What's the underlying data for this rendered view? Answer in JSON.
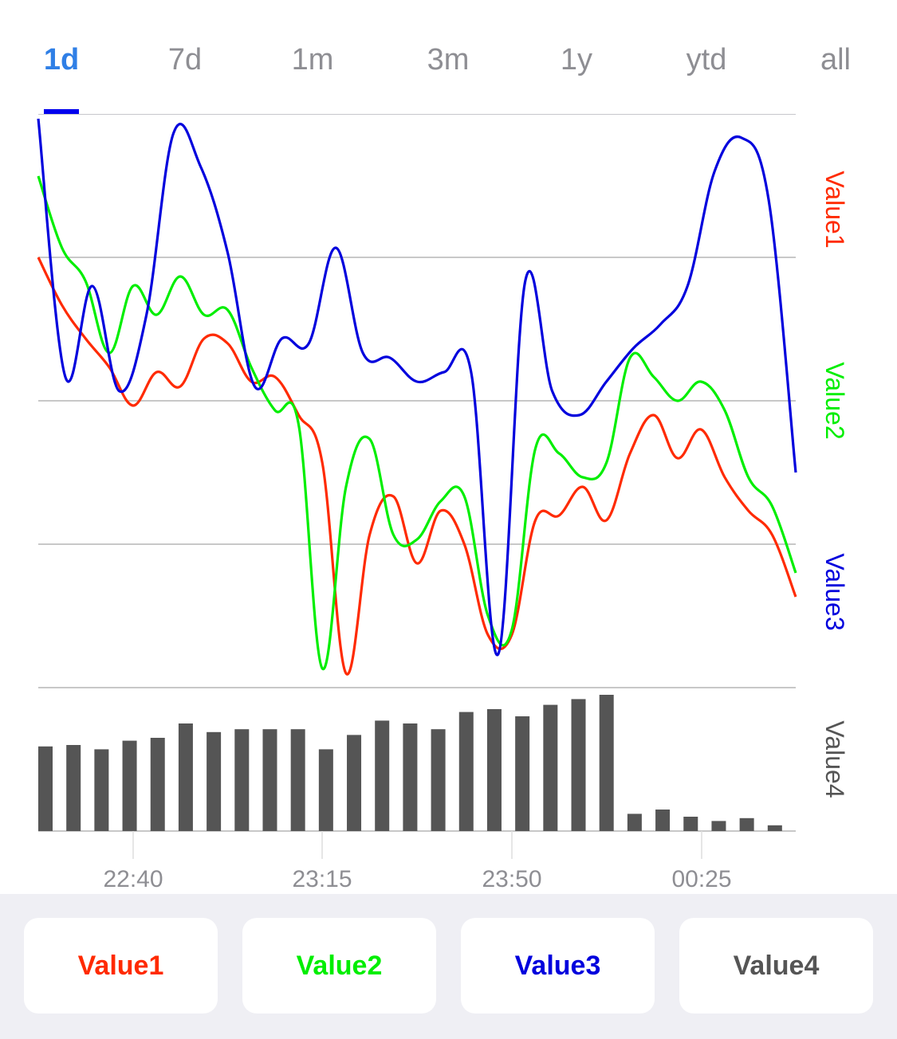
{
  "tabs": [
    {
      "label": "1d",
      "active": true
    },
    {
      "label": "7d",
      "active": false
    },
    {
      "label": "1m",
      "active": false
    },
    {
      "label": "3m",
      "active": false
    },
    {
      "label": "1y",
      "active": false
    },
    {
      "label": "ytd",
      "active": false
    },
    {
      "label": "all",
      "active": false
    }
  ],
  "colors": {
    "tab_active": "#2f7fe6",
    "tab_inactive": "#8e8e93",
    "tab_indicator": "#0000ee",
    "value1": "#ff2a00",
    "value2": "#00ee00",
    "value3": "#0000dd",
    "value4": "#555555",
    "bottom_bar": "#efeff4"
  },
  "chart_data": {
    "type": "line",
    "grid": true,
    "x_ticks": [
      "22:40",
      "23:15",
      "23:50",
      "00:25"
    ],
    "right_labels": [
      "Value1",
      "Value2",
      "Value3",
      "Value4"
    ],
    "line_series": [
      {
        "name": "Value1",
        "color": "#ff2a00",
        "values": [
          0.9,
          0.8,
          0.73,
          0.67,
          0.59,
          0.66,
          0.63,
          0.73,
          0.72,
          0.64,
          0.65,
          0.57,
          0.47,
          0.03,
          0.32,
          0.4,
          0.26,
          0.37,
          0.3,
          0.11,
          0.11,
          0.35,
          0.36,
          0.42,
          0.35,
          0.49,
          0.57,
          0.48,
          0.54,
          0.44,
          0.37,
          0.32,
          0.19
        ]
      },
      {
        "name": "Value2",
        "color": "#00ee00",
        "values": [
          1.07,
          0.92,
          0.85,
          0.7,
          0.84,
          0.78,
          0.86,
          0.78,
          0.79,
          0.67,
          0.58,
          0.55,
          0.04,
          0.42,
          0.52,
          0.32,
          0.31,
          0.39,
          0.4,
          0.15,
          0.12,
          0.5,
          0.49,
          0.44,
          0.47,
          0.69,
          0.65,
          0.6,
          0.64,
          0.58,
          0.44,
          0.38,
          0.24
        ]
      },
      {
        "name": "Value3",
        "color": "#0000dd",
        "values": [
          1.19,
          0.65,
          0.84,
          0.62,
          0.78,
          1.16,
          1.09,
          0.91,
          0.63,
          0.73,
          0.72,
          0.92,
          0.7,
          0.69,
          0.64,
          0.66,
          0.66,
          0.07,
          0.85,
          0.62,
          0.57,
          0.64,
          0.71,
          0.76,
          0.84,
          1.08,
          1.15,
          1.02,
          0.45
        ]
      }
    ],
    "bar_series": {
      "name": "Value4",
      "color": "#555555",
      "values": [
        0.59,
        0.6,
        0.57,
        0.63,
        0.65,
        0.75,
        0.69,
        0.71,
        0.71,
        0.71,
        0.57,
        0.67,
        0.77,
        0.75,
        0.71,
        0.83,
        0.85,
        0.8,
        0.88,
        0.92,
        0.95,
        0.12,
        0.15,
        0.1,
        0.07,
        0.09,
        0.04
      ]
    }
  },
  "buttons": [
    {
      "label": "Value1",
      "color": "#ff2a00"
    },
    {
      "label": "Value2",
      "color": "#00ee00"
    },
    {
      "label": "Value3",
      "color": "#0000dd"
    },
    {
      "label": "Value4",
      "color": "#555555"
    }
  ]
}
